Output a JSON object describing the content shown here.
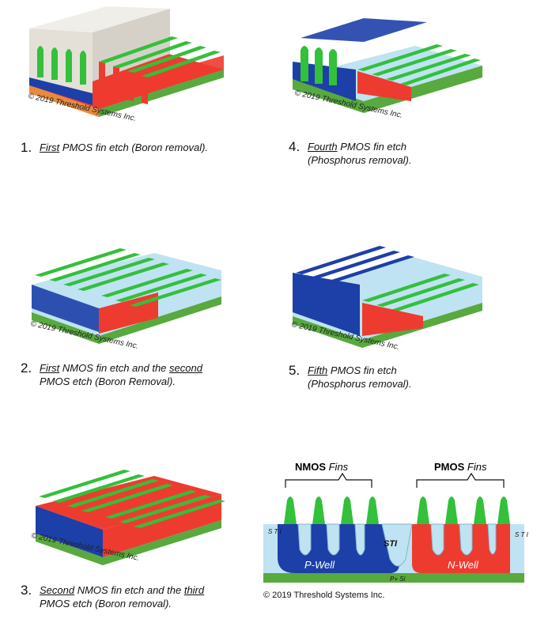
{
  "copyright": "© 2019 Threshold Systems Inc.",
  "captions": [
    {
      "num": "1.",
      "line1_pre": "",
      "line1_u": "First",
      "line1_post": " PMOS fin etch (Boron removal).",
      "line2_pre": "",
      "line2_u": "",
      "line2_post": ""
    },
    {
      "num": "2.",
      "line1_pre": "",
      "line1_u": "First",
      "line1_post": " NMOS fin etch and the ",
      "line1_u2": "second",
      "line2_pre": "",
      "line2_u": "",
      "line2_post": "PMOS etch (Boron Removal)."
    },
    {
      "num": "3.",
      "line1_pre": "",
      "line1_u": "Second",
      "line1_post": " NMOS fin etch and the ",
      "line1_u2": "third",
      "line2_pre": "",
      "line2_u": "",
      "line2_post": "PMOS etch (Boron removal)."
    },
    {
      "num": "4.",
      "line1_pre": "",
      "line1_u": "Fourth",
      "line1_post": " PMOS fin etch",
      "line2_pre": "",
      "line2_u": "",
      "line2_post": "(Phosphorus removal)."
    },
    {
      "num": "5.",
      "line1_pre": "",
      "line1_u": "Fifth",
      "line1_post": " PMOS fin etch",
      "line2_pre": "",
      "line2_u": "",
      "line2_post": "(Phosphorus removal)."
    }
  ],
  "cross_section": {
    "nmos_bold": "NMOS",
    "nmos_rest": " Fins",
    "pmos_bold": "PMOS",
    "pmos_rest": " Fins",
    "sti_center": "STI",
    "sti_edge": "S T I",
    "p_well": "P-Well",
    "n_well": "N-Well",
    "substrate": "P+ Si",
    "copyright": "© 2019 Threshold Systems Inc."
  },
  "colors": {
    "green": "#33c03a",
    "red": "#ee3b30",
    "blue": "#1d3fa8",
    "light_blue": "#bfe3f2",
    "mask_gray": "#e4e0d8",
    "substrate_green": "#58a93e",
    "orange": "#e88a3c"
  }
}
